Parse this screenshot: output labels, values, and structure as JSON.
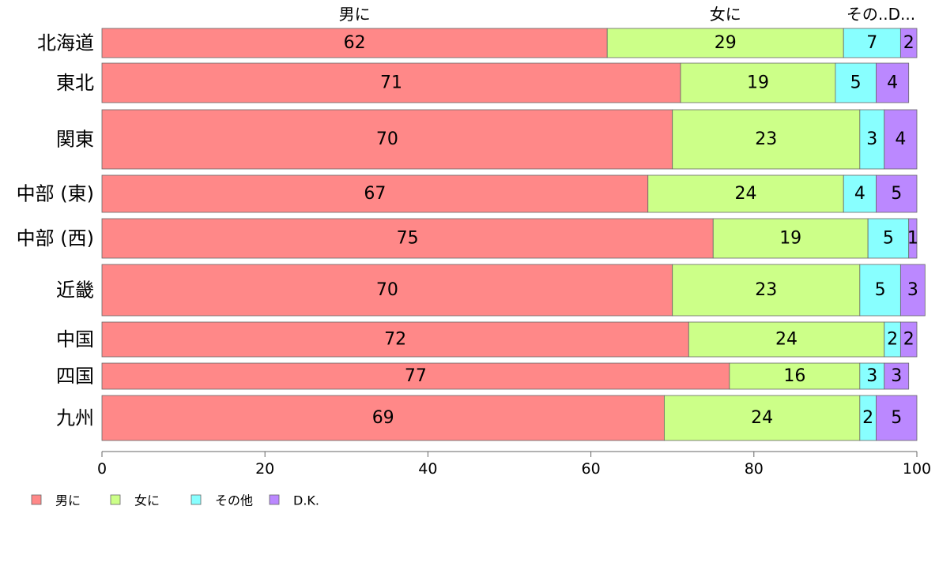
{
  "chart_data": {
    "type": "bar",
    "orientation": "horizontal",
    "stacked": true,
    "categories": [
      "北海道",
      "東北",
      "関東",
      "中部 (東)",
      "中部 (西)",
      "近畿",
      "中国",
      "四国",
      "九州"
    ],
    "series": [
      {
        "name": "男に",
        "color": "#ff8888",
        "values": [
          62,
          71,
          70,
          67,
          75,
          70,
          72,
          77,
          69
        ]
      },
      {
        "name": "女に",
        "color": "#ccff88",
        "values": [
          29,
          19,
          23,
          24,
          19,
          23,
          24,
          16,
          24
        ]
      },
      {
        "name": "その他",
        "color": "#88ffff",
        "values": [
          7,
          5,
          3,
          4,
          5,
          5,
          2,
          3,
          2
        ]
      },
      {
        "name": "D.K.",
        "color": "#bb88ff",
        "values": [
          2,
          4,
          4,
          5,
          1,
          3,
          2,
          3,
          5
        ]
      }
    ],
    "top_labels": [
      "男に",
      "女に",
      "その..D..."
    ],
    "xticks": [
      "0",
      "20",
      "40",
      "60",
      "80",
      "100"
    ],
    "xlim": [
      0,
      100
    ],
    "legend_position": "bottom-left",
    "grid": false
  }
}
